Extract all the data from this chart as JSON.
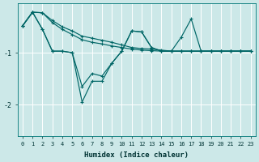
{
  "xlabel": "Humidex (Indice chaleur)",
  "ylabel": "",
  "background_color": "#cce8e8",
  "line_color": "#006666",
  "grid_color": "#ffffff",
  "xlim": [
    -0.5,
    23.5
  ],
  "ylim": [
    -2.6,
    -0.05
  ],
  "yticks": [
    -2,
    -1
  ],
  "xticks": [
    0,
    1,
    2,
    3,
    4,
    5,
    6,
    7,
    8,
    9,
    10,
    11,
    12,
    13,
    14,
    15,
    16,
    17,
    18,
    19,
    20,
    21,
    22,
    23
  ],
  "series": [
    {
      "x": [
        0,
        1,
        2,
        3,
        4,
        5,
        6,
        7,
        8,
        9,
        10,
        11,
        12,
        13,
        14,
        15,
        16,
        17,
        18,
        19,
        20,
        21,
        22,
        23
      ],
      "y": [
        -0.48,
        -0.22,
        -0.23,
        -0.38,
        -0.5,
        -0.58,
        -0.68,
        -0.72,
        -0.76,
        -0.8,
        -0.85,
        -0.9,
        -0.92,
        -0.93,
        -0.95,
        -0.97,
        -0.97,
        -0.97,
        -0.97,
        -0.97,
        -0.97,
        -0.97,
        -0.97,
        -0.97
      ]
    },
    {
      "x": [
        0,
        1,
        2,
        3,
        4,
        5,
        6,
        7,
        8,
        9,
        10,
        11,
        12,
        13,
        14,
        15,
        16,
        17,
        18,
        19,
        20,
        21,
        22,
        23
      ],
      "y": [
        -0.48,
        -0.22,
        -0.23,
        -0.42,
        -0.55,
        -0.65,
        -0.75,
        -0.8,
        -0.83,
        -0.87,
        -0.9,
        -0.93,
        -0.95,
        -0.96,
        -0.97,
        -0.97,
        -0.97,
        -0.97,
        -0.97,
        -0.97,
        -0.97,
        -0.97,
        -0.97,
        -0.97
      ]
    },
    {
      "x": [
        0,
        1,
        2,
        3,
        4,
        5,
        6,
        7,
        8,
        9,
        10,
        11,
        12,
        13,
        14,
        15,
        16,
        17,
        18,
        19,
        20,
        21,
        22,
        23
      ],
      "y": [
        -0.48,
        -0.22,
        -0.55,
        -0.97,
        -0.97,
        -1.0,
        -1.65,
        -1.4,
        -1.45,
        -1.2,
        -0.97,
        -0.58,
        -0.6,
        -0.9,
        -0.97,
        -0.97,
        -0.7,
        -0.35,
        -0.97,
        -0.97,
        -0.97,
        -0.97,
        -0.97,
        -0.97
      ]
    },
    {
      "x": [
        0,
        1,
        2,
        3,
        4,
        5,
        6,
        7,
        8,
        9,
        10,
        11,
        12,
        13,
        14,
        15,
        16,
        17,
        18,
        19,
        20,
        21,
        22,
        23
      ],
      "y": [
        -0.48,
        -0.22,
        -0.55,
        -0.97,
        -0.97,
        -1.0,
        -1.95,
        -1.55,
        -1.55,
        -1.2,
        -0.97,
        -0.58,
        -0.6,
        -0.9,
        -0.97,
        -0.97,
        -0.97,
        -0.97,
        -0.97,
        -0.97,
        -0.97,
        -0.97,
        -0.97,
        -0.97
      ]
    }
  ]
}
